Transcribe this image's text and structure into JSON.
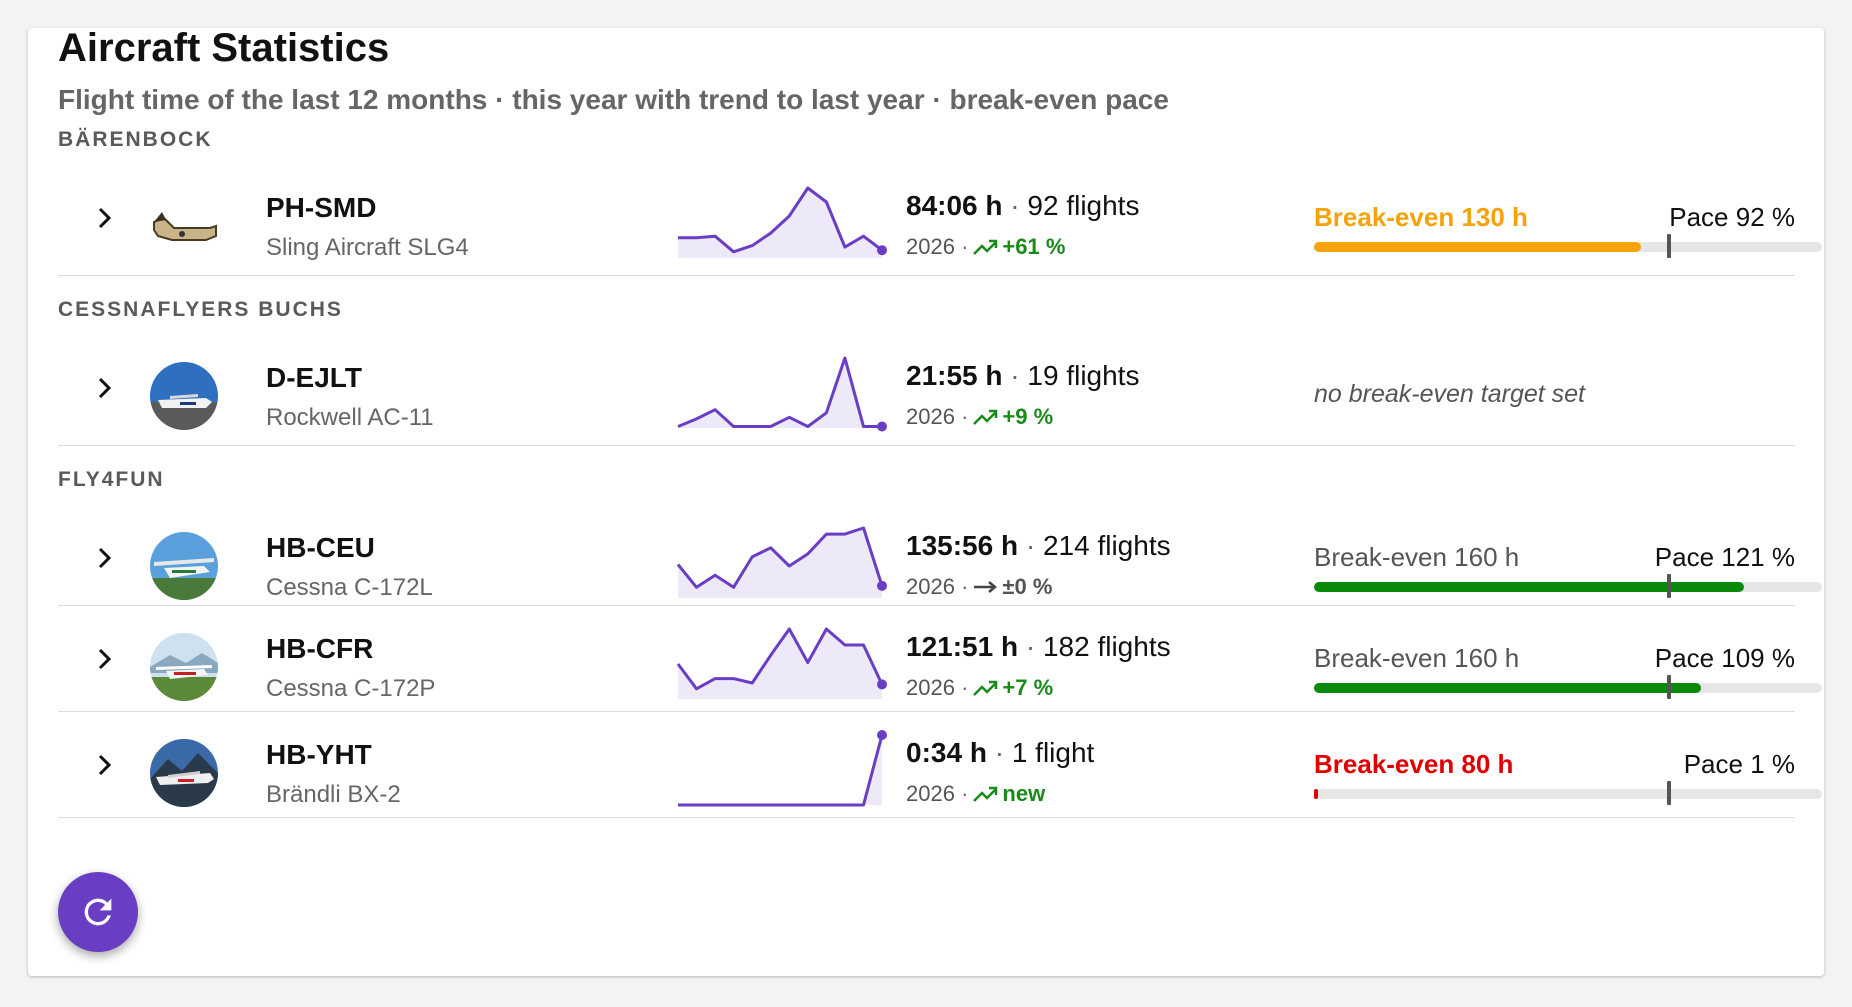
{
  "header": {
    "title": "Aircraft Statistics",
    "subtitle": "Flight time of the last 12 months · this year with trend to last year · break-even pace"
  },
  "colors": {
    "accent": "#6a3ec4",
    "spark_fill": "#eee9f8",
    "trend_up": "#1a8a1a",
    "bar_orange": "#f5a30a",
    "bar_green": "#0a8a0a",
    "bar_red": "#e00000"
  },
  "groups": [
    {
      "label": "BÄRENBOCK"
    },
    {
      "label": "CESSNAFLYERS BUCHS"
    },
    {
      "label": "FLY4FUN"
    }
  ],
  "aircraft": [
    {
      "registration": "PH-SMD",
      "model": "Sling Aircraft SLG4",
      "hours": "84:06 h",
      "flights": "92 flights",
      "year": "2026",
      "trend": "+61 %",
      "trend_icon": "trending-up-icon",
      "break_even": "Break-even 130 h",
      "pace": "Pace 92 %",
      "pace_percent": 92,
      "break_even_color": "#f5a30a",
      "sparkline": [
        13,
        13,
        14,
        4,
        8,
        16,
        27,
        45,
        36,
        7,
        14,
        5
      ]
    },
    {
      "registration": "D-EJLT",
      "model": "Rockwell AC-11",
      "hours": "21:55 h",
      "flights": "19 flights",
      "year": "2026",
      "trend": "+9 %",
      "trend_icon": "trending-up-icon",
      "note": "no break-even target set",
      "sparkline": [
        1,
        6,
        12,
        1,
        1,
        1,
        7,
        1,
        10,
        46,
        1,
        1
      ]
    },
    {
      "registration": "HB-CEU",
      "model": "Cessna C-172L",
      "hours": "135:56 h",
      "flights": "214 flights",
      "year": "2026",
      "trend": "±0 %",
      "trend_icon": "trending-flat-icon",
      "break_even": "Break-even 160 h",
      "pace": "Pace 121 %",
      "pace_percent": 121,
      "break_even_color": "#0a8a0a",
      "sparkline": [
        22,
        7,
        15,
        7,
        27,
        33,
        21,
        29,
        42,
        42,
        46,
        8
      ]
    },
    {
      "registration": "HB-CFR",
      "model": "Cessna C-172P",
      "hours": "121:51 h",
      "flights": "182 flights",
      "year": "2026",
      "trend": "+7 %",
      "trend_icon": "trending-up-icon",
      "break_even": "Break-even 160 h",
      "pace": "Pace 109 %",
      "pace_percent": 109,
      "break_even_color": "#0a8a0a",
      "sparkline": [
        24,
        7,
        14,
        14,
        11,
        30,
        48,
        25,
        48,
        37,
        37,
        10
      ]
    },
    {
      "registration": "HB-YHT",
      "model": "Brändli BX-2",
      "hours": "0:34 h",
      "flights": "1 flight",
      "year": "2026",
      "trend": "new",
      "trend_icon": "trending-up-icon",
      "break_even": "Break-even 80 h",
      "pace": "Pace 1 %",
      "pace_percent": 1,
      "break_even_color": "#e00000",
      "sparkline": [
        0,
        0,
        0,
        0,
        0,
        0,
        0,
        0,
        0,
        0,
        0,
        54
      ]
    }
  ],
  "actions": {
    "refresh_icon": "refresh-icon"
  }
}
